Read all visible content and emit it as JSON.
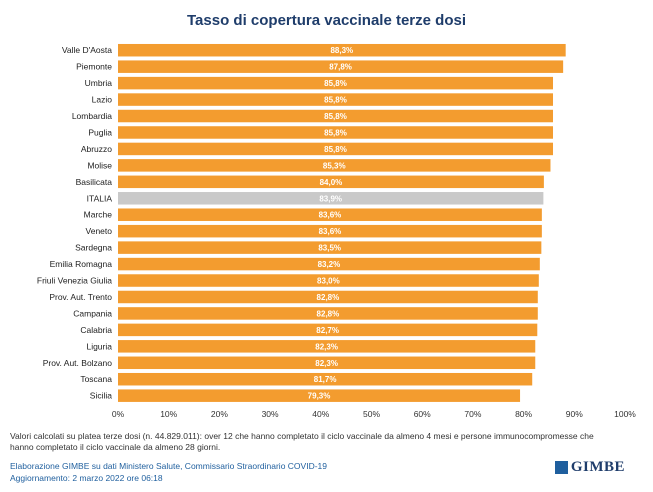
{
  "chart_data": {
    "type": "bar",
    "orientation": "horizontal",
    "title": "Tasso di copertura vaccinale terze dosi",
    "categories": [
      "Valle D'Aosta",
      "Piemonte",
      "Umbria",
      "Lazio",
      "Lombardia",
      "Puglia",
      "Abruzzo",
      "Molise",
      "Basilicata",
      "ITALIA",
      "Marche",
      "Veneto",
      "Sardegna",
      "Emilia Romagna",
      "Friuli Venezia Giulia",
      "Prov. Aut. Trento",
      "Campania",
      "Calabria",
      "Liguria",
      "Prov. Aut. Bolzano",
      "Toscana",
      "Sicilia"
    ],
    "values": [
      88.3,
      87.8,
      85.8,
      85.8,
      85.8,
      85.8,
      85.8,
      85.3,
      84.0,
      83.9,
      83.6,
      83.6,
      83.5,
      83.2,
      83.0,
      82.8,
      82.8,
      82.7,
      82.3,
      82.3,
      81.7,
      79.3
    ],
    "data_labels": [
      "88,3%",
      "87,8%",
      "85,8%",
      "85,8%",
      "85,8%",
      "85,8%",
      "85,8%",
      "85,3%",
      "84,0%",
      "83,9%",
      "83,6%",
      "83,6%",
      "83,5%",
      "83,2%",
      "83,0%",
      "82,8%",
      "82,8%",
      "82,7%",
      "82,3%",
      "82,3%",
      "81,7%",
      "79,3%"
    ],
    "highlight": "ITALIA",
    "colors": {
      "bar": "#f39c2f",
      "highlight": "#c9c9c9",
      "label": "#ffffff"
    },
    "xlim": [
      0,
      100
    ],
    "xticks": [
      "0%",
      "10%",
      "20%",
      "30%",
      "40%",
      "50%",
      "60%",
      "70%",
      "80%",
      "90%",
      "100%"
    ],
    "grid": false,
    "legend": "none"
  },
  "footnote": "Valori calcolati su platea terze dosi (n. 44.829.011): over 12 che hanno completato il ciclo vaccinale da almeno 4 mesi e persone immunocompromesse che hanno completato il ciclo vaccinale da almeno 28 giorni.",
  "source": "Elaborazione GIMBE su dati Ministero Salute, Commissario Straordinario COVID-19",
  "update": "Aggiornamento: 2 marzo 2022 ore 06:18",
  "logo": {
    "text": "GIMBE"
  }
}
